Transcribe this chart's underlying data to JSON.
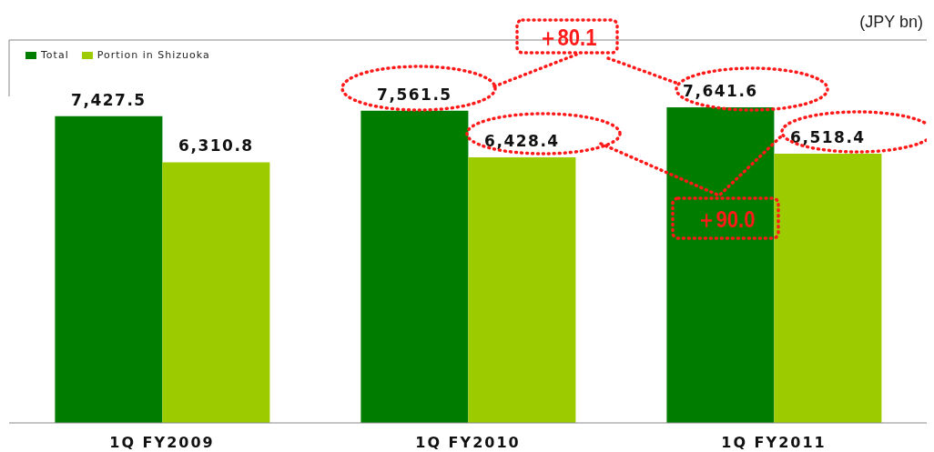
{
  "chart_data": {
    "type": "bar",
    "categories": [
      "1Q FY2009",
      "1Q FY2010",
      "1Q FY2011"
    ],
    "series": [
      {
        "name": "Total",
        "color": "#007d00",
        "values": [
          7427.5,
          7561.5,
          7641.6
        ],
        "value_labels": [
          "7,427.5",
          "7,561.5",
          "7,641.6"
        ]
      },
      {
        "name": "Portion in Shizuoka",
        "color": "#9ccc00",
        "values": [
          6310.8,
          6428.4,
          6518.4
        ],
        "value_labels": [
          "6,310.8",
          "6,428.4",
          "6,518.4"
        ]
      }
    ],
    "legend": "top left",
    "annotations": [
      "(JPY bn)",
      "＋80.1",
      "＋90.0"
    ]
  }
}
